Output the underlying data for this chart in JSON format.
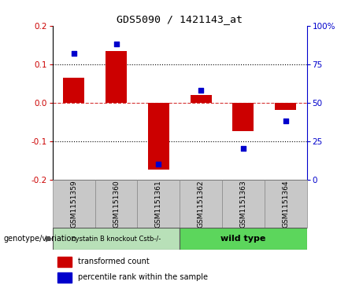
{
  "title": "GDS5090 / 1421143_at",
  "samples": [
    "GSM1151359",
    "GSM1151360",
    "GSM1151361",
    "GSM1151362",
    "GSM1151363",
    "GSM1151364"
  ],
  "red_bars": [
    0.065,
    0.135,
    -0.175,
    0.02,
    -0.075,
    -0.02
  ],
  "blue_dots_pct": [
    82,
    88,
    10,
    58,
    20,
    38
  ],
  "ylim_left": [
    -0.2,
    0.2
  ],
  "ylim_right": [
    0,
    100
  ],
  "group1_label": "cystatin B knockout Cstb-/-",
  "group2_label": "wild type",
  "group1_color": "#b8e0b8",
  "group2_color": "#5cd65c",
  "sample_box_color": "#c8c8c8",
  "genotype_label": "genotype/variation",
  "legend_red": "transformed count",
  "legend_blue": "percentile rank within the sample",
  "red_color": "#cc0000",
  "blue_color": "#0000cc",
  "bar_width": 0.5,
  "left_yticks": [
    -0.2,
    -0.1,
    0.0,
    0.1,
    0.2
  ],
  "right_yticks": [
    0,
    25,
    50,
    75,
    100
  ]
}
